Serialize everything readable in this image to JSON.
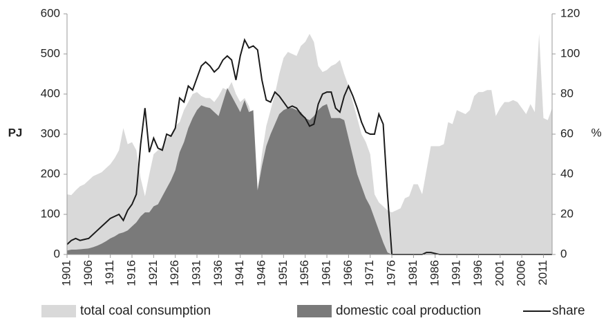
{
  "chart_data": {
    "type": "area",
    "y_label": "PJ",
    "y2_label": "%",
    "x": [
      1901,
      1902,
      1903,
      1904,
      1905,
      1906,
      1907,
      1908,
      1909,
      1910,
      1911,
      1912,
      1913,
      1914,
      1915,
      1916,
      1917,
      1918,
      1919,
      1920,
      1921,
      1922,
      1923,
      1924,
      1925,
      1926,
      1927,
      1928,
      1929,
      1930,
      1931,
      1932,
      1933,
      1934,
      1935,
      1936,
      1937,
      1938,
      1939,
      1940,
      1941,
      1942,
      1943,
      1944,
      1945,
      1946,
      1947,
      1948,
      1949,
      1950,
      1951,
      1952,
      1953,
      1954,
      1955,
      1956,
      1957,
      1958,
      1959,
      1960,
      1961,
      1962,
      1963,
      1964,
      1965,
      1966,
      1967,
      1968,
      1969,
      1970,
      1971,
      1972,
      1973,
      1974,
      1975,
      1976,
      1977,
      1978,
      1979,
      1980,
      1981,
      1982,
      1983,
      1984,
      1985,
      1986,
      1987,
      1988,
      1989,
      1990,
      1991,
      1992,
      1993,
      1994,
      1995,
      1996,
      1997,
      1998,
      1999,
      2000,
      2001,
      2002,
      2003,
      2004,
      2005,
      2006,
      2007,
      2008,
      2009,
      2010,
      2011,
      2012,
      2013
    ],
    "xlim": [
      1901,
      2013
    ],
    "xticks": [
      1901,
      1906,
      1911,
      1916,
      1921,
      1926,
      1931,
      1936,
      1941,
      1946,
      1951,
      1956,
      1961,
      1966,
      1971,
      1976,
      1981,
      1986,
      1991,
      1996,
      2001,
      2006,
      2011
    ],
    "ylim": [
      0,
      600
    ],
    "yticks": [
      0,
      100,
      200,
      300,
      400,
      500,
      600
    ],
    "y2lim": [
      0,
      120
    ],
    "y2ticks": [
      0,
      20,
      40,
      60,
      80,
      100,
      120
    ],
    "series": [
      {
        "name": "total coal consumption",
        "color": "#d9d9d9",
        "values": [
          150,
          148,
          160,
          170,
          175,
          185,
          195,
          200,
          205,
          215,
          225,
          240,
          260,
          315,
          275,
          280,
          260,
          190,
          145,
          200,
          250,
          260,
          270,
          290,
          300,
          320,
          330,
          360,
          380,
          400,
          405,
          395,
          390,
          390,
          380,
          395,
          415,
          410,
          430,
          400,
          380,
          390,
          370,
          330,
          160,
          250,
          320,
          360,
          400,
          450,
          490,
          505,
          500,
          495,
          520,
          530,
          550,
          530,
          470,
          455,
          460,
          470,
          475,
          485,
          450,
          420,
          380,
          340,
          300,
          280,
          250,
          150,
          130,
          120,
          110,
          105,
          110,
          115,
          140,
          145,
          175,
          175,
          150,
          210,
          270,
          270,
          270,
          275,
          330,
          325,
          360,
          355,
          350,
          360,
          395,
          405,
          405,
          410,
          410,
          345,
          365,
          380,
          380,
          385,
          380,
          365,
          350,
          375,
          355,
          550,
          340,
          335,
          365
        ]
      },
      {
        "name": "domestic coal production",
        "color": "#7a7a7a",
        "values": [
          10,
          12,
          12,
          13,
          14,
          15,
          18,
          22,
          27,
          33,
          40,
          45,
          52,
          55,
          60,
          70,
          80,
          95,
          105,
          105,
          120,
          125,
          145,
          165,
          185,
          210,
          255,
          280,
          315,
          340,
          360,
          372,
          368,
          365,
          355,
          345,
          380,
          415,
          395,
          375,
          355,
          385,
          355,
          360,
          160,
          220,
          270,
          300,
          325,
          350,
          360,
          365,
          365,
          360,
          355,
          340,
          335,
          345,
          360,
          370,
          375,
          340,
          340,
          340,
          335,
          290,
          245,
          200,
          170,
          140,
          120,
          90,
          60,
          30,
          5,
          0,
          0,
          0,
          0,
          0,
          0,
          0,
          0,
          0,
          0,
          0,
          0,
          0,
          0,
          0,
          0,
          0,
          0,
          0,
          0,
          0,
          0,
          0,
          0,
          0,
          0,
          0,
          0,
          0,
          0,
          0,
          0,
          0,
          0,
          0,
          0,
          0,
          0
        ]
      },
      {
        "name": "share",
        "color": "#1a1a1a",
        "axis": "y2",
        "values": [
          5,
          7,
          8,
          7,
          7.5,
          8,
          10,
          12,
          14,
          16,
          18,
          19,
          20,
          17,
          22,
          25,
          30,
          55,
          73,
          51,
          58,
          53,
          52,
          60,
          59,
          63,
          78,
          76,
          84,
          82,
          88,
          94,
          96,
          94,
          91,
          93,
          97,
          99,
          97,
          87,
          99,
          107,
          103,
          104,
          102,
          87,
          77,
          76,
          81,
          79,
          76,
          73,
          74,
          73,
          70,
          68,
          64,
          65,
          75,
          80,
          81,
          81,
          73,
          71,
          79,
          84,
          79,
          73,
          66,
          61,
          60,
          60,
          70,
          65,
          30,
          0,
          0,
          0,
          0,
          0,
          0,
          0,
          0,
          1,
          1,
          0.5,
          0,
          0,
          0,
          0,
          0,
          0,
          0,
          0,
          0,
          0,
          0,
          0,
          0,
          0,
          0,
          0,
          0,
          0,
          0,
          0,
          0,
          0,
          0,
          0,
          0,
          0,
          0
        ]
      }
    ]
  }
}
